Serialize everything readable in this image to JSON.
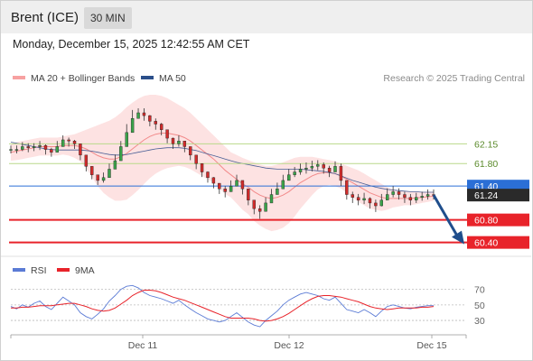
{
  "header": {
    "symbol": "Brent (ICE)",
    "timeframe": "30 MIN"
  },
  "datetime": "Monday, December 15, 2025 12:42:55 AM CET",
  "credit": "Research © 2025 Trading Central",
  "colors": {
    "bollinger": "#f7a1a1",
    "ma50": "#2b4f8a",
    "rsi": "#5b7bd5",
    "rsi_ma": "#e8232a",
    "support": "#e8232a",
    "resistance": "#b9d98a",
    "pivot": "#2b6fd6",
    "arrow": "#1f4e8c"
  },
  "chart_data": [
    {
      "type": "line",
      "title": "",
      "legend": [
        {
          "name": "MA 20 + Bollinger Bands",
          "color": "#f7a1a1"
        },
        {
          "name": "MA 50",
          "color": "#2b4f8a"
        }
      ],
      "x_ticks": [
        "Dec 11",
        "Dec 12",
        "Dec 15"
      ],
      "ylim": [
        60.25,
        63.1
      ],
      "levels": [
        {
          "label": "62.15",
          "value": 62.15,
          "kind": "resistance"
        },
        {
          "label": "61.80",
          "value": 61.8,
          "kind": "resistance"
        },
        {
          "label": "61.40",
          "value": 61.4,
          "kind": "pivot"
        },
        {
          "label": "61.24",
          "value": 61.24,
          "kind": "last"
        },
        {
          "label": "60.80",
          "value": 60.8,
          "kind": "support"
        },
        {
          "label": "60.40",
          "value": 60.4,
          "kind": "support"
        }
      ],
      "price_close": [
        62.05,
        62.05,
        62.1,
        62.08,
        62.1,
        62.12,
        62.05,
        62.0,
        62.1,
        62.22,
        62.2,
        62.15,
        61.95,
        61.75,
        61.6,
        61.5,
        61.55,
        61.7,
        61.85,
        62.1,
        62.35,
        62.6,
        62.7,
        62.65,
        62.55,
        62.5,
        62.4,
        62.25,
        62.15,
        62.2,
        62.1,
        61.95,
        61.8,
        61.65,
        61.55,
        61.45,
        61.35,
        61.3,
        61.4,
        61.5,
        61.35,
        61.15,
        61.0,
        60.95,
        61.1,
        61.25,
        61.35,
        61.5,
        61.6,
        61.65,
        61.7,
        61.72,
        61.75,
        61.78,
        61.72,
        61.65,
        61.75,
        61.5,
        61.25,
        61.2,
        61.15,
        61.18,
        61.1,
        61.05,
        61.15,
        61.25,
        61.3,
        61.25,
        61.2,
        61.15,
        61.2,
        61.22,
        61.25,
        61.24
      ],
      "price_high": [
        62.12,
        62.12,
        62.18,
        62.16,
        62.16,
        62.2,
        62.14,
        62.08,
        62.2,
        62.3,
        62.26,
        62.22,
        62.05,
        61.86,
        61.7,
        61.58,
        61.64,
        61.8,
        61.96,
        62.2,
        62.5,
        62.75,
        62.78,
        62.78,
        62.66,
        62.6,
        62.52,
        62.35,
        62.26,
        62.3,
        62.2,
        62.06,
        61.9,
        61.76,
        61.66,
        61.56,
        61.45,
        61.4,
        61.5,
        61.6,
        61.46,
        61.28,
        61.1,
        61.06,
        61.2,
        61.35,
        61.46,
        61.6,
        61.7,
        61.74,
        61.8,
        61.82,
        61.85,
        61.86,
        61.82,
        61.76,
        61.84,
        61.8,
        61.4,
        61.3,
        61.26,
        61.28,
        61.2,
        61.16,
        61.26,
        61.36,
        61.4,
        61.36,
        61.3,
        61.26,
        61.28,
        61.3,
        61.34,
        61.34
      ],
      "price_low": [
        61.98,
        61.98,
        62.02,
        62.0,
        62.02,
        62.04,
        61.96,
        61.92,
        62.0,
        62.12,
        62.1,
        62.06,
        61.86,
        61.66,
        61.52,
        61.42,
        61.46,
        61.6,
        61.76,
        61.98,
        62.26,
        62.5,
        62.6,
        62.56,
        62.46,
        62.4,
        62.3,
        62.16,
        62.06,
        62.1,
        62.0,
        61.86,
        61.7,
        61.56,
        61.46,
        61.36,
        61.26,
        61.2,
        61.3,
        61.4,
        61.25,
        61.06,
        60.9,
        60.82,
        61.0,
        61.16,
        61.26,
        61.4,
        61.5,
        61.56,
        61.6,
        61.62,
        61.66,
        61.68,
        61.62,
        61.56,
        61.65,
        61.4,
        61.16,
        61.1,
        61.06,
        61.08,
        61.0,
        60.94,
        61.04,
        61.16,
        61.2,
        61.16,
        61.1,
        61.06,
        61.1,
        61.14,
        61.16,
        61.16
      ],
      "ma20": [
        62.0,
        62.02,
        62.04,
        62.06,
        62.08,
        62.1,
        62.1,
        62.1,
        62.1,
        62.12,
        62.12,
        62.12,
        62.1,
        62.06,
        62.0,
        61.94,
        61.9,
        61.88,
        61.88,
        61.92,
        61.98,
        62.06,
        62.14,
        62.22,
        62.28,
        62.32,
        62.34,
        62.34,
        62.32,
        62.3,
        62.26,
        62.2,
        62.12,
        62.04,
        61.96,
        61.88,
        61.78,
        61.68,
        61.6,
        61.52,
        61.44,
        61.38,
        61.3,
        61.24,
        61.2,
        61.18,
        61.2,
        61.24,
        61.3,
        61.38,
        61.46,
        61.52,
        61.58,
        61.62,
        61.64,
        61.64,
        61.62,
        61.58,
        61.52,
        61.46,
        61.4,
        61.34,
        61.28,
        61.24,
        61.2,
        61.18,
        61.18,
        61.18,
        61.18,
        61.18,
        61.19,
        61.2,
        61.21,
        61.22
      ],
      "bb_upper": [
        62.15,
        62.18,
        62.2,
        62.22,
        62.24,
        62.26,
        62.26,
        62.26,
        62.26,
        62.28,
        62.3,
        62.32,
        62.36,
        62.4,
        62.44,
        62.48,
        62.52,
        62.56,
        62.62,
        62.7,
        62.8,
        62.88,
        62.95,
        63.0,
        63.02,
        63.02,
        63.0,
        62.96,
        62.9,
        62.84,
        62.78,
        62.7,
        62.6,
        62.5,
        62.4,
        62.3,
        62.2,
        62.1,
        62.0,
        61.95,
        61.9,
        61.86,
        61.82,
        61.78,
        61.76,
        61.76,
        61.78,
        61.82,
        61.86,
        61.9,
        61.92,
        61.92,
        61.92,
        61.9,
        61.88,
        61.86,
        61.84,
        61.8,
        61.76,
        61.72,
        61.68,
        61.62,
        61.56,
        61.5,
        61.44,
        61.38,
        61.34,
        61.32,
        61.3,
        61.3,
        61.3,
        61.3,
        61.3,
        61.3
      ],
      "bb_lower": [
        61.85,
        61.86,
        61.88,
        61.9,
        61.92,
        61.94,
        61.94,
        61.94,
        61.94,
        61.96,
        61.94,
        61.9,
        61.84,
        61.72,
        61.56,
        61.4,
        61.28,
        61.2,
        61.14,
        61.14,
        61.16,
        61.24,
        61.33,
        61.44,
        61.54,
        61.62,
        61.68,
        61.72,
        61.74,
        61.76,
        61.74,
        61.7,
        61.64,
        61.58,
        61.52,
        61.46,
        61.36,
        61.26,
        61.2,
        61.09,
        60.98,
        60.9,
        60.78,
        60.7,
        60.64,
        60.6,
        60.62,
        60.66,
        60.74,
        60.86,
        61.0,
        61.12,
        61.24,
        61.34,
        61.4,
        61.42,
        61.4,
        61.36,
        61.28,
        61.2,
        61.12,
        61.06,
        61.0,
        60.98,
        60.96,
        60.98,
        61.02,
        61.04,
        61.06,
        61.06,
        61.08,
        61.1,
        61.12,
        61.14
      ],
      "ma50": [
        62.18,
        62.16,
        62.14,
        62.12,
        62.1,
        62.08,
        62.06,
        62.05,
        62.04,
        62.04,
        62.04,
        62.04,
        62.04,
        62.03,
        62.02,
        62.0,
        61.98,
        61.96,
        61.95,
        61.95,
        61.96,
        61.98,
        62.0,
        62.02,
        62.04,
        62.06,
        62.07,
        62.08,
        62.08,
        62.08,
        62.07,
        62.05,
        62.03,
        62.0,
        61.97,
        61.94,
        61.91,
        61.88,
        61.85,
        61.82,
        61.8,
        61.78,
        61.76,
        61.74,
        61.72,
        61.71,
        61.7,
        61.7,
        61.7,
        61.7,
        61.7,
        61.69,
        61.68,
        61.67,
        61.66,
        61.64,
        61.62,
        61.58,
        61.54,
        61.5,
        61.47,
        61.44,
        61.41,
        61.38,
        61.36,
        61.34,
        61.33,
        61.32,
        61.31,
        61.3,
        61.3,
        61.29,
        61.29,
        61.29
      ]
    },
    {
      "type": "line",
      "title": "",
      "legend": [
        {
          "name": "RSI",
          "color": "#5b7bd5"
        },
        {
          "name": "9MA",
          "color": "#e8232a"
        }
      ],
      "y_ticks": [
        70,
        50,
        30
      ],
      "ylim": [
        15,
        80
      ],
      "rsi": [
        48,
        45,
        50,
        47,
        52,
        55,
        48,
        44,
        52,
        60,
        55,
        50,
        40,
        35,
        32,
        38,
        45,
        55,
        62,
        70,
        74,
        75,
        72,
        66,
        62,
        60,
        58,
        55,
        52,
        56,
        50,
        45,
        40,
        36,
        32,
        30,
        28,
        30,
        35,
        40,
        34,
        28,
        24,
        22,
        30,
        36,
        42,
        50,
        56,
        60,
        64,
        66,
        64,
        62,
        58,
        56,
        60,
        52,
        44,
        42,
        40,
        44,
        40,
        35,
        42,
        48,
        50,
        48,
        46,
        45,
        47,
        48,
        49,
        49
      ],
      "rsi_ma": [
        46,
        46,
        47,
        47,
        48,
        49,
        49,
        49,
        50,
        51,
        52,
        52,
        50,
        48,
        45,
        43,
        42,
        43,
        46,
        51,
        56,
        62,
        66,
        69,
        69,
        68,
        66,
        63,
        60,
        58,
        56,
        53,
        50,
        47,
        44,
        41,
        38,
        35,
        33,
        33,
        33,
        33,
        32,
        30,
        29,
        30,
        32,
        35,
        39,
        44,
        49,
        54,
        58,
        61,
        62,
        62,
        61,
        60,
        58,
        56,
        54,
        51,
        48,
        46,
        45,
        44,
        45,
        46,
        46,
        46,
        46,
        47,
        47,
        48
      ]
    }
  ]
}
